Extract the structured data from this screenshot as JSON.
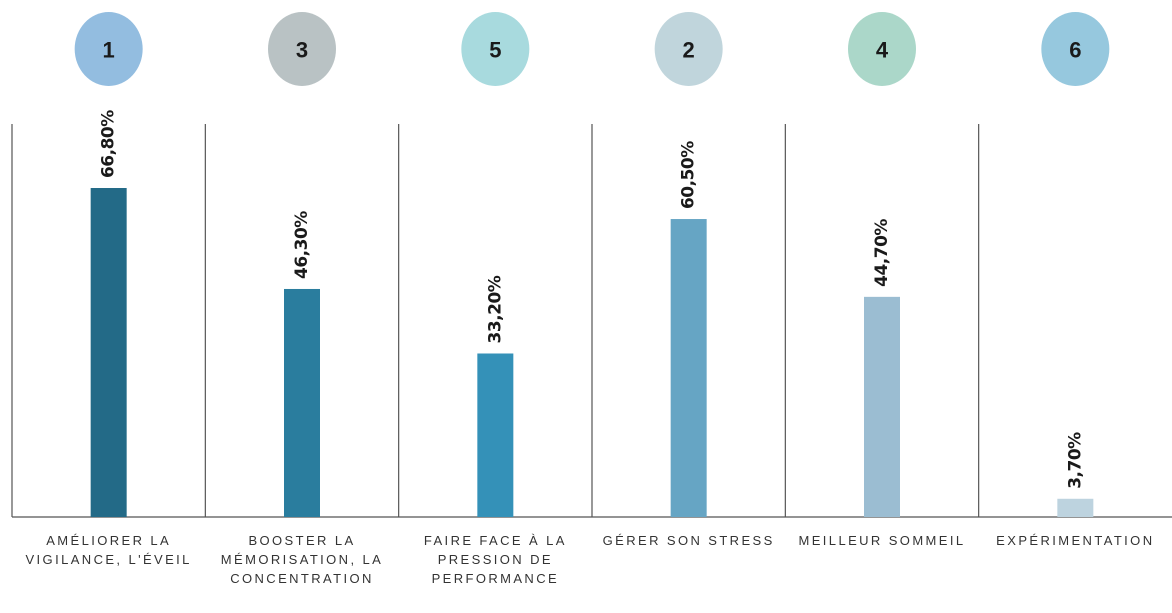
{
  "chart_data": {
    "type": "bar",
    "categories": [
      "AMÉLIORER LA VIGILANCE, L'ÉVEIL",
      "BOOSTER LA MÉMORISATION, LA CONCENTRATION",
      "FAIRE FACE À LA PRESSION DE PERFORMANCE",
      "GÉRER SON STRESS",
      "MEILLEUR SOMMEIL",
      "EXPÉRIMENTATION"
    ],
    "values": [
      66.8,
      46.3,
      33.2,
      60.5,
      44.7,
      3.7
    ],
    "value_labels": [
      "66,80%",
      "46,30%",
      "33,20%",
      "60,50%",
      "44,70%",
      "3,70%"
    ],
    "colors": [
      "#236a87",
      "#2a7d9e",
      "#3491b8",
      "#66a5c4",
      "#9bbdd2",
      "#bdd3df"
    ],
    "ranks": [
      "1",
      "3",
      "5",
      "2",
      "4",
      "6"
    ],
    "rank_colors": [
      "#93bde0",
      "#b9c2c4",
      "#a8dade",
      "#c0d5dc",
      "#abd7c9",
      "#96c8de"
    ]
  }
}
